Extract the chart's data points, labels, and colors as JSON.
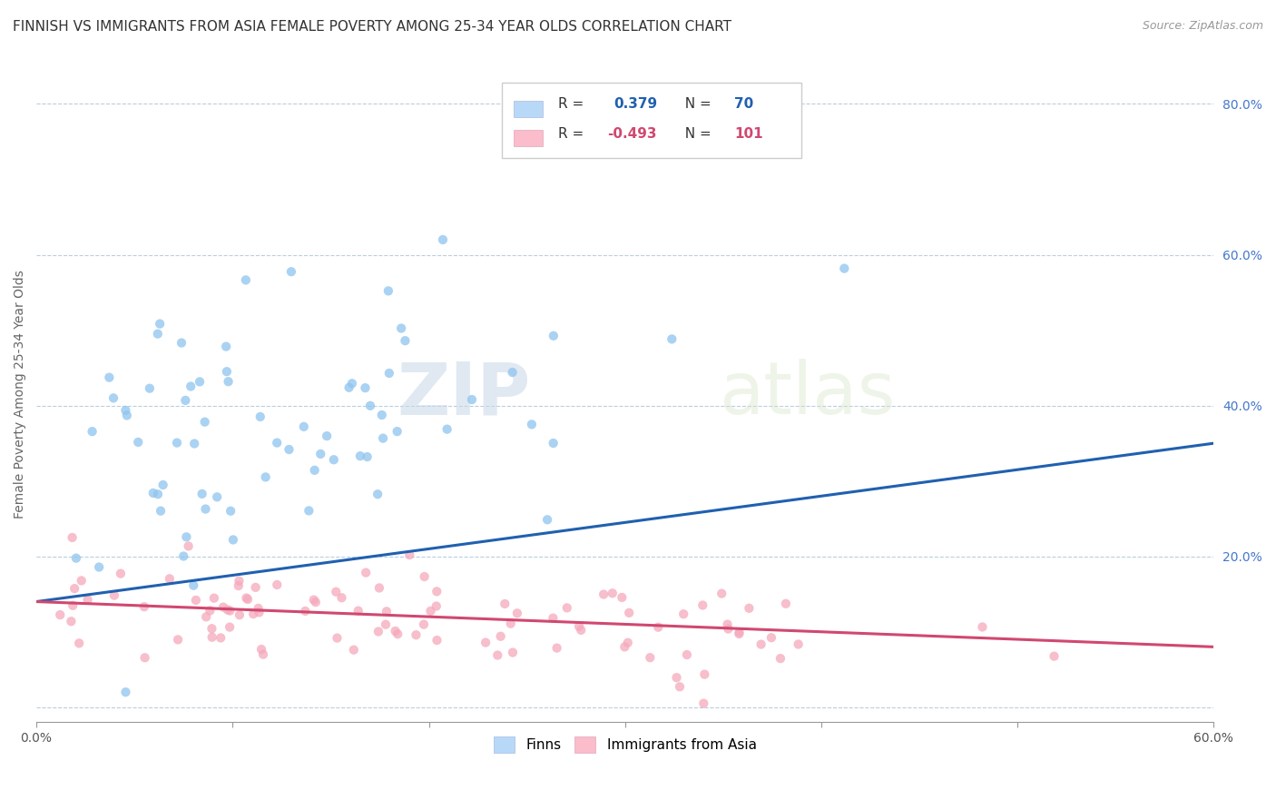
{
  "title": "FINNISH VS IMMIGRANTS FROM ASIA FEMALE POVERTY AMONG 25-34 YEAR OLDS CORRELATION CHART",
  "source": "Source: ZipAtlas.com",
  "ylabel": "Female Poverty Among 25-34 Year Olds",
  "xlim": [
    0.0,
    0.6
  ],
  "ylim": [
    -0.02,
    0.85
  ],
  "x_tick_positions": [
    0.0,
    0.1,
    0.2,
    0.3,
    0.4,
    0.5,
    0.6
  ],
  "x_tick_labels": [
    "0.0%",
    "",
    "",
    "",
    "",
    "",
    "60.0%"
  ],
  "y_ticks_right": [
    0.0,
    0.2,
    0.4,
    0.6,
    0.8
  ],
  "y_tick_labels_right": [
    "",
    "20.0%",
    "40.0%",
    "60.0%",
    "80.0%"
  ],
  "finns_color": "#8ec4ee",
  "immigrants_color": "#f5a8bc",
  "finns_line_color": "#2060b0",
  "immigrants_line_color": "#d04870",
  "legend_label_finns": "Finns",
  "legend_label_immigrants": "Immigrants from Asia",
  "R_finns": 0.379,
  "N_finns": 70,
  "R_immigrants": -0.493,
  "N_immigrants": 101,
  "background_color": "#ffffff",
  "title_fontsize": 11,
  "axis_label_fontsize": 10,
  "tick_fontsize": 10,
  "source_fontsize": 9,
  "legend_box_color_finns": "#b8d8f8",
  "legend_box_color_immigrants": "#fbbccc",
  "legend_text_color_finns": "#2060b0",
  "legend_text_color_immigrants": "#d04870",
  "scatter_size": 55,
  "scatter_alpha": 0.75,
  "grid_color": "#b8cfe0",
  "finns_seed": 42,
  "immigrants_seed": 7
}
